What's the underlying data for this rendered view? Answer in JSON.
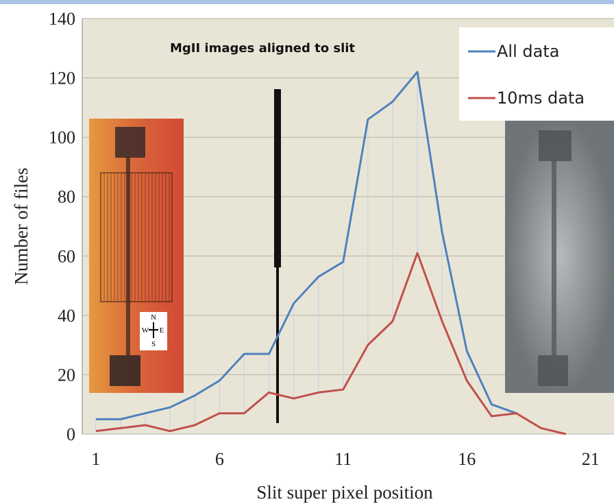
{
  "chart_data": {
    "type": "line",
    "title": "MgII images aligned to slit",
    "x_label": "Slit super pixel position",
    "y_label": "Number of files",
    "x": [
      1,
      2,
      3,
      4,
      5,
      6,
      7,
      8,
      9,
      10,
      11,
      12,
      13,
      14,
      15,
      16,
      17,
      18,
      19,
      20
    ],
    "series": [
      {
        "name": "All data",
        "color": "#4f81bd",
        "values": [
          5,
          5,
          7,
          9,
          13,
          18,
          27,
          27,
          44,
          53,
          58,
          106,
          112,
          122,
          68,
          28,
          10,
          7,
          null,
          null
        ]
      },
      {
        "name": "10ms data",
        "color": "#c0504d",
        "values": [
          1,
          2,
          3,
          1,
          3,
          7,
          7,
          14,
          12,
          14,
          15,
          30,
          38,
          61,
          38,
          18,
          6,
          7,
          2,
          0
        ]
      }
    ],
    "xlim": [
      0.45,
      21.95
    ],
    "xticks": [
      1,
      6,
      11,
      16,
      21
    ],
    "ylim": [
      0,
      140
    ],
    "yticks": [
      0,
      20,
      40,
      60,
      80,
      100,
      120,
      140
    ],
    "grid": true,
    "legend": "top-right",
    "annotations": [
      "N",
      "W",
      "E",
      "S"
    ]
  }
}
